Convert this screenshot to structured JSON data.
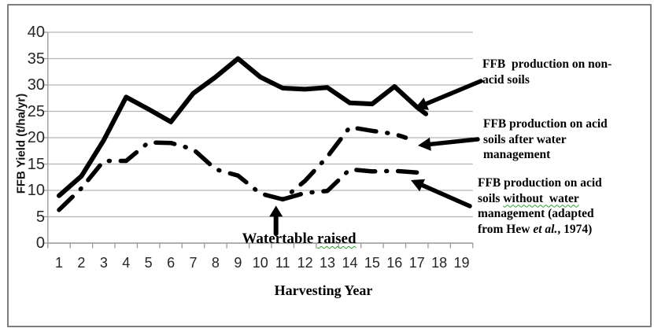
{
  "figure": {
    "background": "#ffffff",
    "border_color": "#7e7e7e",
    "line_color": "#000000",
    "gridline_color": "#b3b3b3",
    "axis_color": "#9b9b9b"
  },
  "chart_data": {
    "type": "line",
    "title": "",
    "xlabel": "Harvesting Year",
    "ylabel": "FFB Yield (t/ha/yr)",
    "x_ticks": [
      1,
      2,
      3,
      4,
      5,
      6,
      7,
      8,
      9,
      10,
      11,
      12,
      13,
      14,
      15,
      16,
      17,
      18,
      19
    ],
    "y_ticks": [
      0,
      5,
      10,
      15,
      20,
      25,
      30,
      35,
      40
    ],
    "xlim": [
      0.5,
      19.5
    ],
    "ylim": [
      0,
      40
    ],
    "grid": "horizontal",
    "legend_position": "right-outside",
    "series": [
      {
        "id": "non-acid-soils",
        "name": "FFB production on non-acid soils",
        "line": "solid",
        "color": "#000000",
        "points": [
          [
            1,
            9
          ],
          [
            2,
            12.7
          ],
          [
            3,
            19.5
          ],
          [
            4,
            27.7
          ],
          [
            5,
            25.4
          ],
          [
            6,
            23
          ],
          [
            7,
            28.4
          ],
          [
            8,
            31.5
          ],
          [
            9,
            35
          ],
          [
            10,
            31.5
          ],
          [
            11,
            29.4
          ],
          [
            12,
            29.2
          ],
          [
            13,
            29.5
          ],
          [
            14,
            26.6
          ],
          [
            15,
            26.4
          ],
          [
            16,
            29.7
          ],
          [
            17,
            25.8
          ],
          [
            17.4,
            24.5
          ]
        ]
      },
      {
        "id": "acid-soils-after-water-management",
        "name": "FFB production on acid soils after water management",
        "line": "dashed",
        "color": "#000000",
        "points": [
          [
            1,
            6.3
          ],
          [
            2,
            10.4
          ],
          [
            3,
            15.6
          ],
          [
            4,
            15.6
          ],
          [
            5,
            19.1
          ],
          [
            6,
            19
          ],
          [
            7,
            17.8
          ],
          [
            8,
            14
          ],
          [
            9,
            12.8
          ],
          [
            10,
            9.4
          ],
          [
            11,
            8.3
          ],
          [
            12,
            11.8
          ],
          [
            13,
            16.4
          ],
          [
            14,
            22
          ],
          [
            15,
            21.3
          ],
          [
            16,
            20.7
          ],
          [
            16.5,
            20
          ]
        ]
      },
      {
        "id": "acid-soils-without-water-management",
        "name": "FFB production on acid soils without water management (adapted from Hew et al., 1974)",
        "line": "dashed",
        "color": "#000000",
        "points": [
          [
            11,
            8.3
          ],
          [
            12,
            9.5
          ],
          [
            13,
            9.9
          ],
          [
            14,
            14
          ],
          [
            15,
            13.6
          ],
          [
            16,
            13.7
          ],
          [
            17,
            13.4
          ]
        ]
      }
    ],
    "annotation": {
      "text": "Watertable raised",
      "x": 10.7,
      "y": 8.3
    }
  },
  "annotation": {
    "pre": "Watertable ",
    "wavy": "raised"
  },
  "legend": {
    "non_acid": {
      "line1": "FFB  production on non-",
      "line2": "acid soils"
    },
    "after": {
      "line1": "FFB production on acid",
      "line2": "soils after water",
      "line3": "management"
    },
    "without": {
      "line1": "FFB production on acid",
      "line2_pre": "soils ",
      "line2_wavy": "without  water",
      "line3": "management (adapted",
      "line4_pre": "from Hew ",
      "line4_italic": "et al.",
      "line4_post": ", 1974)"
    }
  }
}
